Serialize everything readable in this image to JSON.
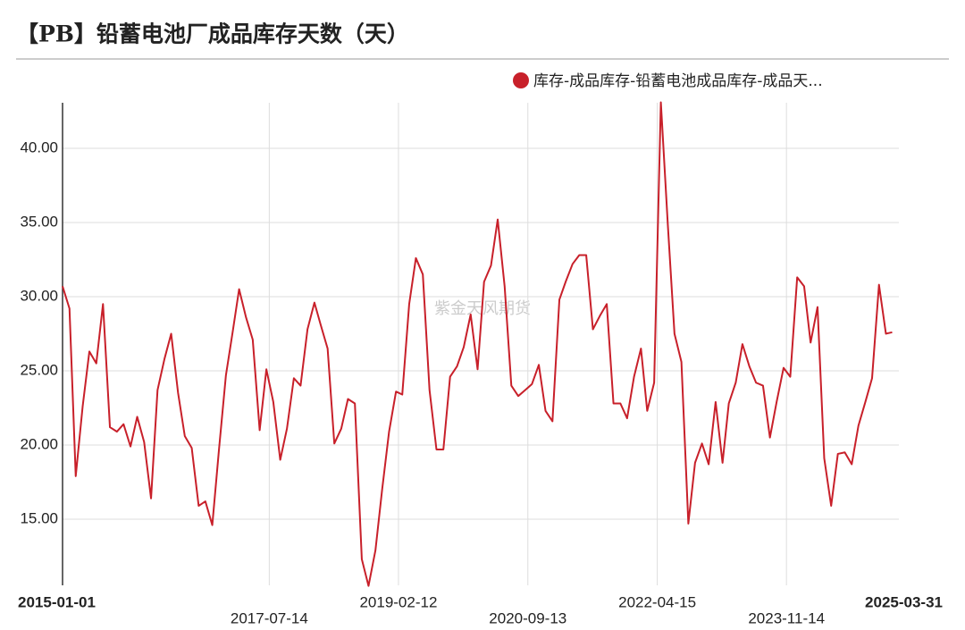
{
  "chart_data": {
    "type": "line",
    "title": "【PB】铅蓄电池厂成品库存天数（天）",
    "watermark": "紫金天风期货",
    "legend": "top-right",
    "grid": true,
    "xlim": [
      "2015-01-01",
      "2025-03-31"
    ],
    "xticks": [
      "2015-01-01",
      "2017-07-14",
      "2019-02-12",
      "2020-09-13",
      "2022-04-15",
      "2023-11-14",
      "2025-03-31"
    ],
    "ylim": [
      10.54,
      43.07
    ],
    "yticks": [
      {
        "value": 15,
        "label": "15.00"
      },
      {
        "value": 20,
        "label": "20.00"
      },
      {
        "value": 25,
        "label": "25.00"
      },
      {
        "value": 30,
        "label": "30.00"
      },
      {
        "value": 35,
        "label": "35.00"
      },
      {
        "value": 40,
        "label": "40.00"
      }
    ],
    "x": [
      "2015-01",
      "2015-02",
      "2015-03",
      "2015-04",
      "2015-05",
      "2015-06",
      "2015-07",
      "2015-08",
      "2015-09",
      "2015-10",
      "2015-11",
      "2015-12",
      "2016-01",
      "2016-02",
      "2016-03",
      "2016-04",
      "2016-05",
      "2016-06",
      "2016-07",
      "2016-08",
      "2016-09",
      "2016-10",
      "2016-11",
      "2016-12",
      "2017-01",
      "2017-02",
      "2017-03",
      "2017-04",
      "2017-05",
      "2017-06",
      "2017-07",
      "2017-08",
      "2017-09",
      "2017-10",
      "2017-11",
      "2017-12",
      "2018-01",
      "2018-02",
      "2018-03",
      "2018-04",
      "2018-05",
      "2018-06",
      "2018-07",
      "2018-08",
      "2018-09",
      "2018-10",
      "2018-11",
      "2018-12",
      "2019-01",
      "2019-02",
      "2019-03",
      "2019-04",
      "2019-05",
      "2019-06",
      "2019-07",
      "2019-08",
      "2019-09",
      "2019-10",
      "2019-11",
      "2019-12",
      "2020-01",
      "2020-02",
      "2020-03",
      "2020-04",
      "2020-05",
      "2020-06",
      "2020-07",
      "2020-08",
      "2020-09",
      "2020-10",
      "2020-11",
      "2020-12",
      "2021-01",
      "2021-02",
      "2021-03",
      "2021-04",
      "2021-05",
      "2021-06",
      "2021-07",
      "2021-08",
      "2021-09",
      "2021-10",
      "2021-11",
      "2021-12",
      "2022-01",
      "2022-02",
      "2022-03",
      "2022-04",
      "2022-05",
      "2022-06",
      "2022-07",
      "2022-08",
      "2022-09",
      "2022-10",
      "2022-11",
      "2022-12",
      "2023-01",
      "2023-02",
      "2023-03",
      "2023-04",
      "2023-05",
      "2023-06",
      "2023-07",
      "2023-08",
      "2023-09",
      "2023-10",
      "2023-11",
      "2023-12",
      "2024-01",
      "2024-02",
      "2024-03",
      "2024-04",
      "2024-05",
      "2024-06",
      "2024-07",
      "2024-08",
      "2024-09",
      "2024-10",
      "2024-11",
      "2024-12",
      "2025-01",
      "2025-02",
      "2025-03"
    ],
    "series": [
      {
        "name": "库存-成品库存-铅蓄电池成品库存-成品天...",
        "color": "#c8202a",
        "values": [
          30.7,
          29.2,
          17.9,
          22.6,
          26.3,
          25.5,
          29.5,
          21.2,
          20.9,
          21.4,
          19.9,
          21.9,
          20.2,
          16.4,
          23.7,
          25.8,
          27.5,
          23.5,
          20.6,
          19.8,
          15.9,
          16.2,
          14.6,
          19.7,
          24.7,
          27.7,
          30.5,
          28.6,
          27.1,
          21.0,
          25.1,
          22.9,
          19.0,
          21.1,
          24.5,
          24.0,
          27.8,
          29.6,
          28.1,
          26.5,
          20.1,
          21.1,
          23.1,
          22.8,
          12.3,
          10.5,
          12.9,
          17.0,
          20.9,
          23.6,
          23.4,
          29.5,
          32.6,
          31.5,
          23.7,
          19.7,
          19.7,
          24.6,
          25.3,
          26.6,
          28.8,
          25.1,
          31.0,
          32.1,
          35.2,
          30.7,
          24.0,
          23.3,
          23.7,
          24.1,
          25.4,
          22.3,
          21.6,
          29.8,
          31.0,
          32.2,
          32.8,
          32.8,
          27.8,
          28.7,
          29.5,
          22.8,
          22.8,
          21.8,
          24.6,
          26.5,
          22.3,
          24.2,
          43.1,
          34.9,
          27.5,
          25.6,
          14.7,
          18.8,
          20.1,
          18.7,
          22.9,
          18.8,
          22.8,
          24.2,
          26.8,
          25.3,
          24.2,
          24.0,
          20.5,
          22.9,
          25.2,
          24.6,
          31.3,
          30.7,
          26.9,
          29.3,
          19.1,
          15.9,
          19.4,
          19.5,
          18.7,
          21.3,
          22.9,
          24.5,
          30.8,
          27.5,
          27.6
        ]
      }
    ]
  }
}
